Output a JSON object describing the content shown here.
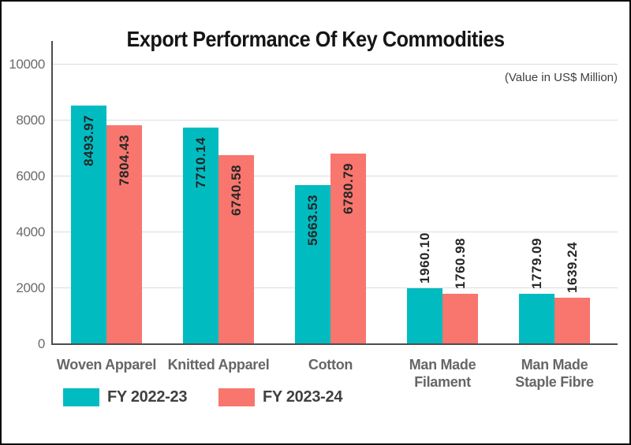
{
  "chart_data": {
    "type": "bar",
    "title": "Export Performance Of Key Commodities",
    "subtitle": "(Value in US$ Million)",
    "categories": [
      "Woven Apparel",
      "Knitted Apparel",
      "Cotton",
      "Man Made\nFilament",
      "Man Made\nStaple Fibre"
    ],
    "series": [
      {
        "name": "FY 2022-23",
        "color": "#00BCC1",
        "values": [
          8493.97,
          7710.14,
          5663.53,
          1960.1,
          1779.09
        ]
      },
      {
        "name": "FY 2023-24",
        "color": "#F8766D",
        "values": [
          7804.43,
          6740.58,
          6780.79,
          1760.98,
          1639.24
        ]
      }
    ],
    "ylim": [
      0,
      10000
    ],
    "yticks": [
      0,
      2000,
      4000,
      6000,
      8000,
      10000
    ],
    "grid": true,
    "legend_position": "bottom-left",
    "value_label_decimals": 2,
    "colors": {
      "grid": "#dcdcdc",
      "axis": "#4d4d4d",
      "tick_text": "#6b6b6b",
      "category_text": "#666666",
      "legend_text": "#404040",
      "value_text": "#262626",
      "title_text": "#151515",
      "background": "#ffffff",
      "border": "#0a0a0a"
    }
  }
}
